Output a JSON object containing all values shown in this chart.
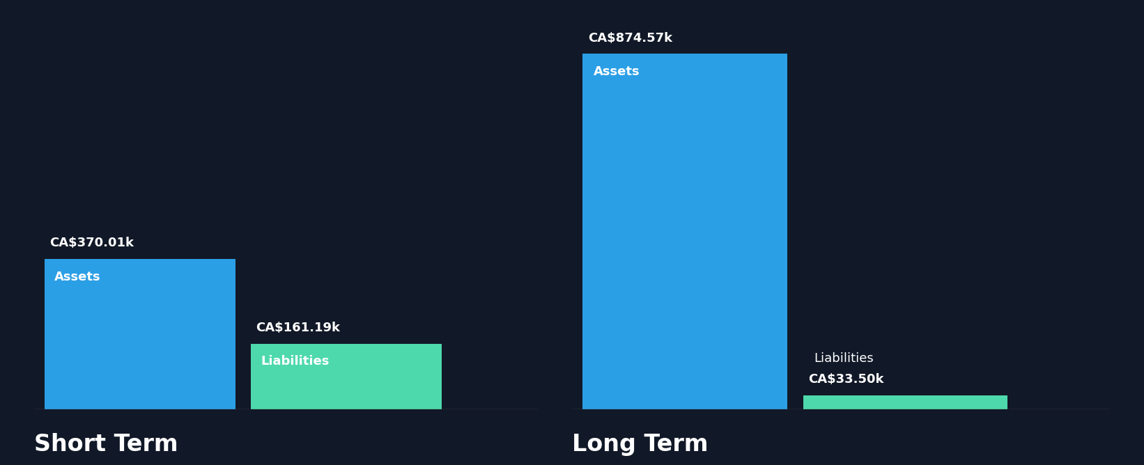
{
  "background_color": "#111827",
  "short_term": {
    "assets_value": 370.01,
    "liabilities_value": 161.19,
    "assets_label": "Assets",
    "liabilities_label": "Liabilities",
    "assets_value_label": "CA$370.01k",
    "liabilities_value_label": "CA$161.19k",
    "title": "Short Term"
  },
  "long_term": {
    "assets_value": 874.57,
    "liabilities_value": 33.5,
    "assets_label": "Assets",
    "liabilities_label": "Liabilities",
    "assets_value_label": "CA$874.57k",
    "liabilities_value_label": "CA$33.50k",
    "title": "Long Term"
  },
  "assets_color": "#2B9FE6",
  "liabilities_color": "#4DD9AC",
  "text_color": "#FFFFFF",
  "label_fontsize": 13,
  "value_fontsize": 13,
  "title_fontsize": 24,
  "max_value": 950
}
